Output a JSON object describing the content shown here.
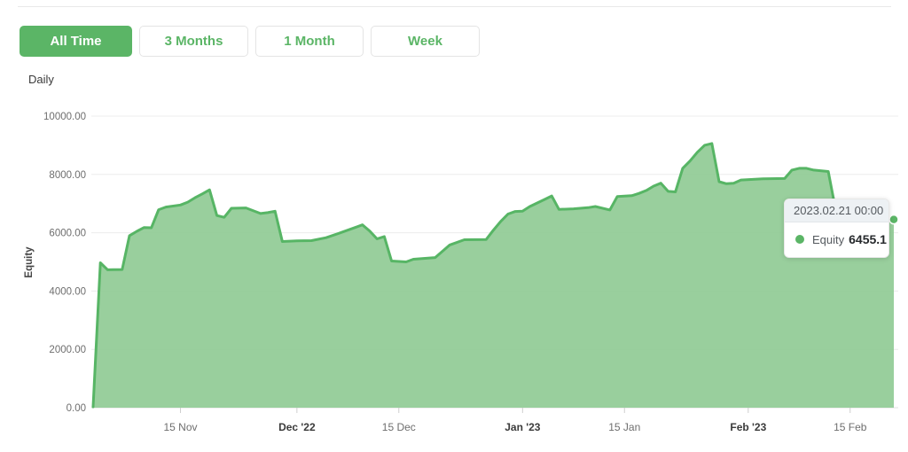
{
  "period_label": "Daily",
  "filters": {
    "items": [
      {
        "label": "All Time",
        "active": true
      },
      {
        "label": "3 Months",
        "active": false
      },
      {
        "label": "1 Month",
        "active": false
      },
      {
        "label": "Week",
        "active": false
      }
    ]
  },
  "tooltip": {
    "title": "2023.02.21 00:00",
    "series_label": "Equity",
    "value": "6455.1"
  },
  "chart_data": {
    "type": "area",
    "title": "",
    "xlabel": "",
    "ylabel": "Equity",
    "ylim": [
      0,
      10000
    ],
    "grid": true,
    "legend": "none",
    "x_range": [
      "2022-11-03",
      "2023-02-21"
    ],
    "y_ticks": [
      {
        "value": 10000,
        "label": "10000.00"
      },
      {
        "value": 8000,
        "label": "8000.00"
      },
      {
        "value": 6000,
        "label": "6000.00"
      },
      {
        "value": 4000,
        "label": "4000.00"
      },
      {
        "value": 2000,
        "label": "2000.00"
      },
      {
        "value": 0,
        "label": "0.00"
      }
    ],
    "x_ticks": [
      {
        "date": "2022-11-15",
        "label": "15 Nov",
        "bold": false
      },
      {
        "date": "2022-12-01",
        "label": "Dec '22",
        "bold": true
      },
      {
        "date": "2022-12-15",
        "label": "15 Dec",
        "bold": false
      },
      {
        "date": "2023-01-01",
        "label": "Jan '23",
        "bold": true
      },
      {
        "date": "2023-01-15",
        "label": "15 Jan",
        "bold": false
      },
      {
        "date": "2023-02-01",
        "label": "Feb '23",
        "bold": true
      },
      {
        "date": "2023-02-15",
        "label": "15 Feb",
        "bold": false
      }
    ],
    "series": [
      {
        "name": "Equity",
        "line_color": "#57b565",
        "fill_color": "#90cb95",
        "points": [
          [
            "2022-11-03",
            30
          ],
          [
            "2022-11-04",
            4970
          ],
          [
            "2022-11-05",
            4730
          ],
          [
            "2022-11-07",
            4740
          ],
          [
            "2022-11-08",
            5900
          ],
          [
            "2022-11-09",
            6050
          ],
          [
            "2022-11-10",
            6180
          ],
          [
            "2022-11-11",
            6170
          ],
          [
            "2022-11-12",
            6790
          ],
          [
            "2022-11-13",
            6880
          ],
          [
            "2022-11-15",
            6950
          ],
          [
            "2022-11-16",
            7050
          ],
          [
            "2022-11-17",
            7200
          ],
          [
            "2022-11-18",
            7330
          ],
          [
            "2022-11-19",
            7470
          ],
          [
            "2022-11-20",
            6590
          ],
          [
            "2022-11-21",
            6530
          ],
          [
            "2022-11-22",
            6840
          ],
          [
            "2022-11-24",
            6850
          ],
          [
            "2022-11-26",
            6660
          ],
          [
            "2022-11-27",
            6690
          ],
          [
            "2022-11-28",
            6740
          ],
          [
            "2022-11-29",
            5700
          ],
          [
            "2022-12-01",
            5720
          ],
          [
            "2022-12-03",
            5730
          ],
          [
            "2022-12-05",
            5830
          ],
          [
            "2022-12-07",
            6000
          ],
          [
            "2022-12-09",
            6180
          ],
          [
            "2022-12-10",
            6270
          ],
          [
            "2022-12-11",
            6060
          ],
          [
            "2022-12-12",
            5790
          ],
          [
            "2022-12-13",
            5870
          ],
          [
            "2022-12-14",
            5030
          ],
          [
            "2022-12-16",
            5000
          ],
          [
            "2022-12-17",
            5090
          ],
          [
            "2022-12-20",
            5150
          ],
          [
            "2022-12-22",
            5580
          ],
          [
            "2022-12-24",
            5760
          ],
          [
            "2022-12-27",
            5770
          ],
          [
            "2022-12-28",
            6090
          ],
          [
            "2022-12-29",
            6390
          ],
          [
            "2022-12-30",
            6640
          ],
          [
            "2022-12-31",
            6730
          ],
          [
            "2023-01-01",
            6740
          ],
          [
            "2023-01-02",
            6900
          ],
          [
            "2023-01-04",
            7140
          ],
          [
            "2023-01-05",
            7260
          ],
          [
            "2023-01-06",
            6800
          ],
          [
            "2023-01-08",
            6820
          ],
          [
            "2023-01-10",
            6860
          ],
          [
            "2023-01-11",
            6900
          ],
          [
            "2023-01-13",
            6780
          ],
          [
            "2023-01-14",
            7240
          ],
          [
            "2023-01-16",
            7270
          ],
          [
            "2023-01-17",
            7350
          ],
          [
            "2023-01-18",
            7450
          ],
          [
            "2023-01-19",
            7600
          ],
          [
            "2023-01-20",
            7700
          ],
          [
            "2023-01-21",
            7420
          ],
          [
            "2023-01-22",
            7400
          ],
          [
            "2023-01-23",
            8210
          ],
          [
            "2023-01-24",
            8460
          ],
          [
            "2023-01-25",
            8760
          ],
          [
            "2023-01-26",
            9000
          ],
          [
            "2023-01-27",
            9060
          ],
          [
            "2023-01-28",
            7750
          ],
          [
            "2023-01-29",
            7680
          ],
          [
            "2023-01-30",
            7700
          ],
          [
            "2023-01-31",
            7810
          ],
          [
            "2023-02-03",
            7850
          ],
          [
            "2023-02-06",
            7860
          ],
          [
            "2023-02-07",
            8150
          ],
          [
            "2023-02-08",
            8210
          ],
          [
            "2023-02-09",
            8210
          ],
          [
            "2023-02-10",
            8150
          ],
          [
            "2023-02-12",
            8100
          ],
          [
            "2023-02-13",
            6800
          ],
          [
            "2023-02-17",
            6600
          ],
          [
            "2023-02-21",
            6455.1
          ]
        ]
      }
    ],
    "last_point": {
      "date": "2023-02-21",
      "value": 6455.1
    },
    "colors": {
      "grid": "#ececec",
      "axis_line": "#e0e0e0",
      "tick_mark": "#cfcfcf",
      "tick_label": "#6e6e6e",
      "bold_tick_label": "#3a3a3a",
      "ylabel_color": "#444444",
      "marker": "#5bb566"
    }
  }
}
